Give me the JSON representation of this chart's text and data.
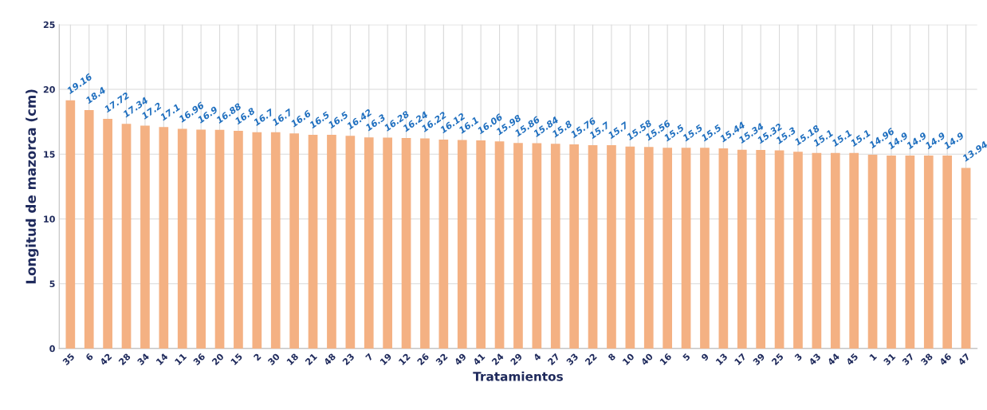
{
  "chart_data": {
    "type": "bar",
    "xlabel": "Tratamientos",
    "ylabel": "Longitud de mazorca (cm)",
    "categories": [
      "35",
      "6",
      "42",
      "28",
      "34",
      "14",
      "11",
      "36",
      "20",
      "15",
      "2",
      "30",
      "18",
      "21",
      "48",
      "23",
      "7",
      "19",
      "12",
      "26",
      "32",
      "49",
      "41",
      "24",
      "29",
      "4",
      "27",
      "33",
      "22",
      "8",
      "10",
      "40",
      "16",
      "5",
      "9",
      "13",
      "17",
      "39",
      "25",
      "3",
      "43",
      "44",
      "45",
      "1",
      "31",
      "37",
      "38",
      "46",
      "47"
    ],
    "values": [
      19.16,
      18.4,
      17.72,
      17.34,
      17.2,
      17.1,
      16.96,
      16.9,
      16.88,
      16.8,
      16.7,
      16.7,
      16.6,
      16.5,
      16.5,
      16.42,
      16.3,
      16.28,
      16.24,
      16.22,
      16.12,
      16.1,
      16.06,
      15.98,
      15.86,
      15.84,
      15.8,
      15.76,
      15.7,
      15.7,
      15.58,
      15.56,
      15.5,
      15.5,
      15.5,
      15.44,
      15.34,
      15.32,
      15.3,
      15.18,
      15.1,
      15.1,
      15.1,
      14.96,
      14.9,
      14.9,
      14.9,
      14.9,
      13.94
    ],
    "color": "#f4b183",
    "ylim": [
      0,
      25
    ],
    "yticks": [
      0,
      5,
      10,
      15,
      20,
      25
    ],
    "grid": true,
    "data_labels": true
  }
}
